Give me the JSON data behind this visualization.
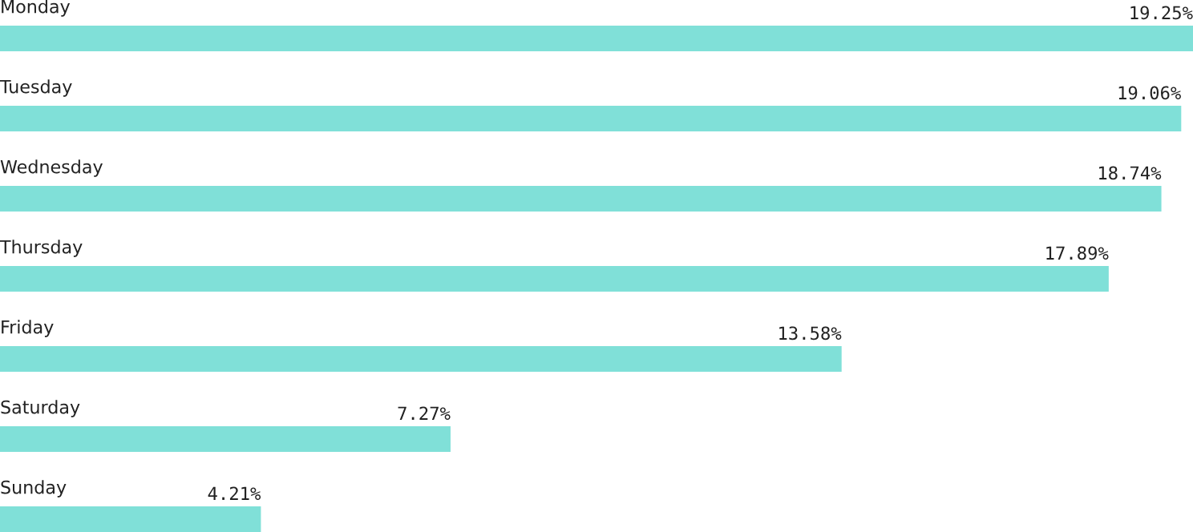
{
  "chart_data": {
    "type": "bar",
    "orientation": "horizontal",
    "categories": [
      "Monday",
      "Tuesday",
      "Wednesday",
      "Thursday",
      "Friday",
      "Saturday",
      "Sunday"
    ],
    "values": [
      19.25,
      19.06,
      18.74,
      17.89,
      13.58,
      7.27,
      4.21
    ],
    "value_labels": [
      "19.25%",
      "19.06%",
      "18.74%",
      "17.89%",
      "13.58%",
      "7.27%",
      "4.21%"
    ],
    "color": "#80e0d8",
    "grid": false,
    "legend": false,
    "tick_labels": false
  }
}
